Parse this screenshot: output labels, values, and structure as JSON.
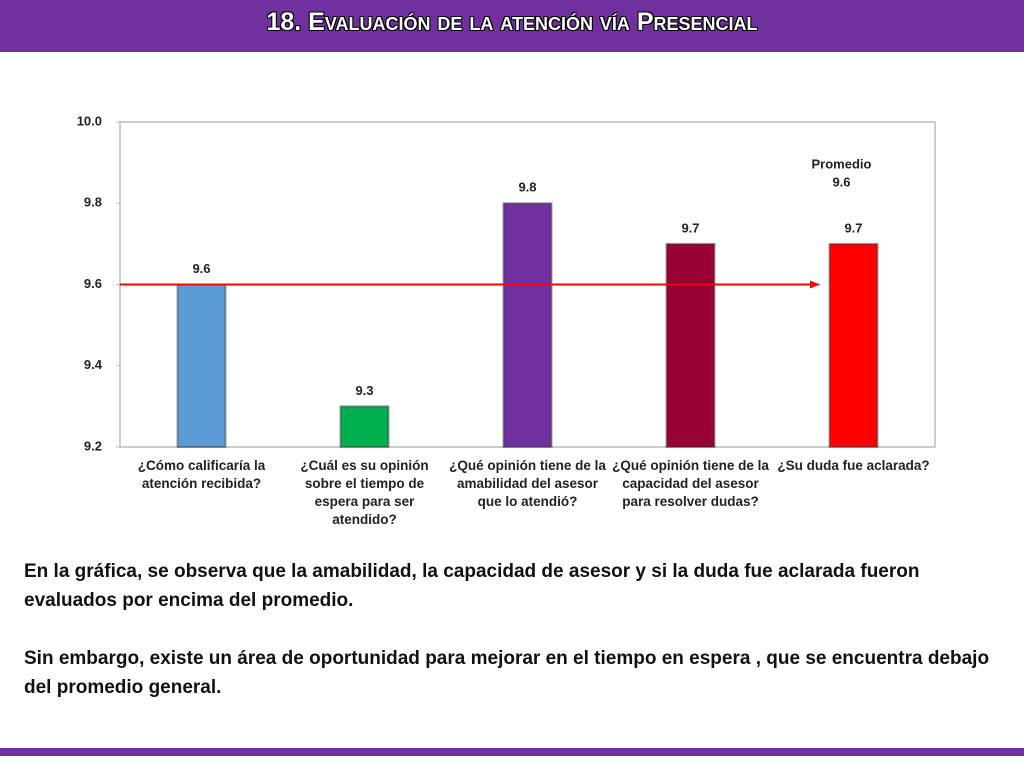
{
  "header": {
    "title": "18. Evaluación de la atención vía Presencial"
  },
  "chart_data": {
    "type": "bar",
    "categories": [
      "¿Cómo calificaría la atención recibida?",
      "¿Cuál es su opinión sobre el tiempo de espera para ser atendido?",
      "¿Qué opinión tiene de la amabilidad del asesor que lo atendió?",
      "¿Qué opinión tiene de la capacidad del asesor para resolver dudas?",
      "¿Su duda fue aclarada?"
    ],
    "values": [
      9.6,
      9.3,
      9.8,
      9.7,
      9.7
    ],
    "colors": [
      "#5b9bd5",
      "#00b050",
      "#7030a0",
      "#990033",
      "#ff0000"
    ],
    "ylim": [
      9.2,
      10
    ],
    "yticks": [
      9.2,
      9.4,
      9.6,
      9.8,
      {
        "value": 10,
        "label": "10.0"
      }
    ],
    "average": 9.6,
    "average_label": "Promedio",
    "average_color": "#ff0000"
  },
  "text": {
    "paragraphs": [
      "En la gráfica, se observa que la amabilidad, la capacidad de asesor y si la duda fue aclarada fueron evaluados por encima del promedio.",
      "Sin embargo, existe un área de oportunidad para mejorar en el tiempo en espera , que se encuentra debajo del  promedio general."
    ]
  }
}
